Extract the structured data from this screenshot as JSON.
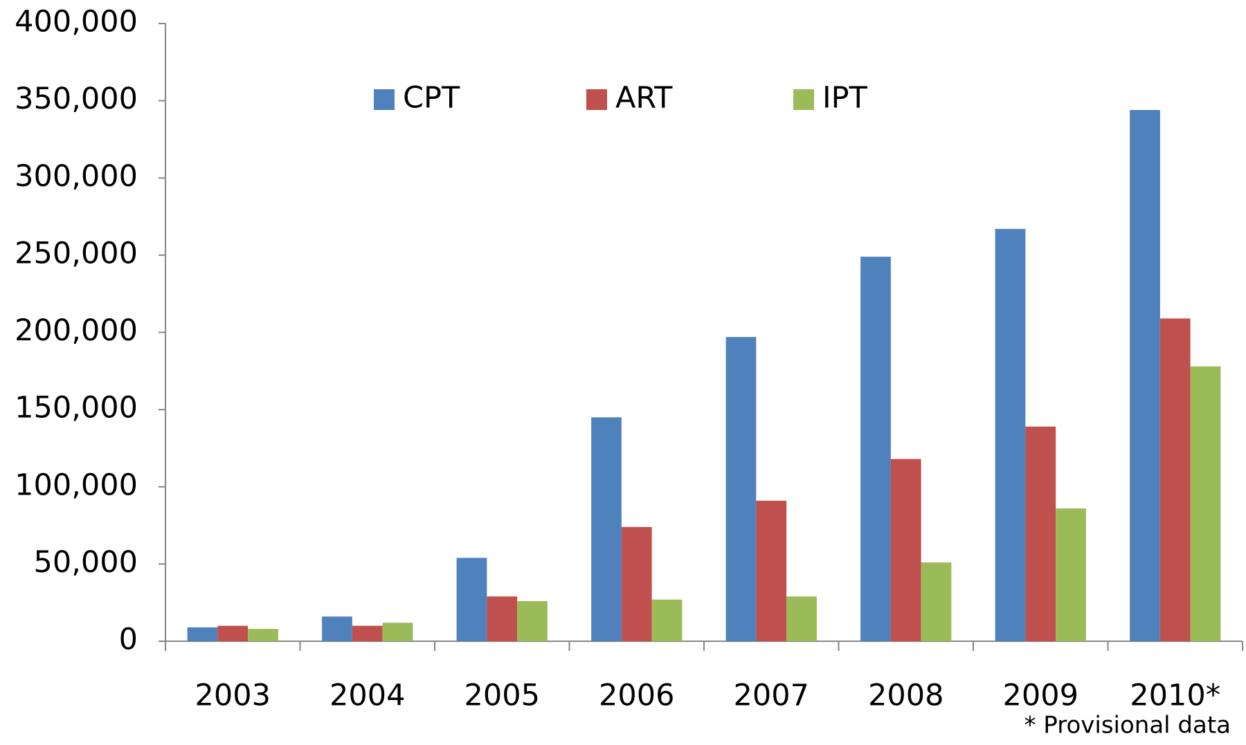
{
  "chart_data": {
    "type": "bar",
    "categories": [
      "2003",
      "2004",
      "2005",
      "2006",
      "2007",
      "2008",
      "2009",
      "2010*"
    ],
    "series": [
      {
        "name": "CPT",
        "color": "#4f81bd",
        "values": [
          9000,
          16000,
          54000,
          145000,
          197000,
          249000,
          267000,
          344000
        ]
      },
      {
        "name": "ART",
        "color": "#c0504d",
        "values": [
          10000,
          10000,
          29000,
          74000,
          91000,
          118000,
          139000,
          209000
        ]
      },
      {
        "name": "IPT",
        "color": "#9bbb59",
        "values": [
          8000,
          12000,
          26000,
          27000,
          29000,
          51000,
          86000,
          178000
        ]
      }
    ],
    "ylim": [
      0,
      400000
    ],
    "yticks": [
      0,
      {
        "value": 50000,
        "label": "50,000"
      },
      {
        "value": 100000,
        "label": "100,000"
      },
      {
        "value": 150000,
        "label": "150,000"
      },
      {
        "value": 200000,
        "label": "200,000"
      },
      {
        "value": 250000,
        "label": "250,000"
      },
      {
        "value": 300000,
        "label": "300,000"
      },
      {
        "value": 350000,
        "label": "350,000"
      },
      {
        "value": 400000,
        "label": "400,000"
      }
    ],
    "grid": false,
    "legend": "top",
    "footnote": "* Provisional data"
  }
}
